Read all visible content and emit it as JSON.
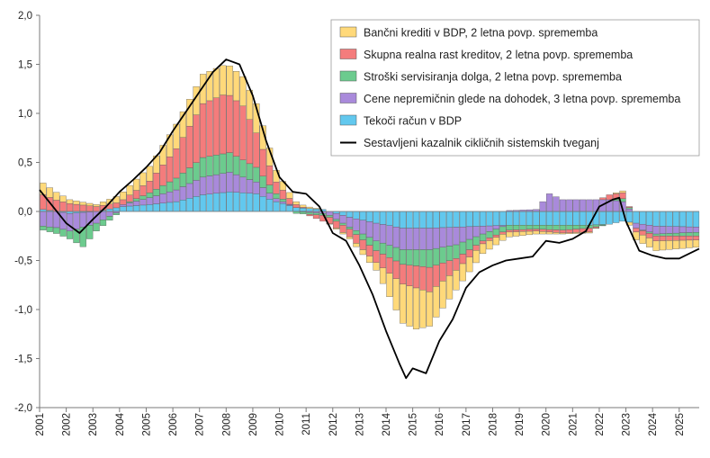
{
  "chart_data": {
    "type": "bar",
    "stacked": true,
    "title": "",
    "xlabel": "",
    "ylabel": "",
    "ylim": [
      -2.0,
      2.0
    ],
    "yticks": [
      "2,0",
      "1,5",
      "1,0",
      "0,5",
      "0,0",
      "-0,5",
      "-1,0",
      "-1,5",
      "-2,0"
    ],
    "xtick_labels": [
      "2001",
      "2002",
      "2003",
      "2004",
      "2005",
      "2006",
      "2007",
      "2008",
      "2009",
      "2010",
      "2011",
      "2012",
      "2013",
      "2014",
      "2015",
      "2016",
      "2017",
      "2018",
      "2019",
      "2020",
      "2021",
      "2022",
      "2023",
      "2024",
      "2025"
    ],
    "x_start": 2001.0,
    "x_end": 2025.75,
    "frequency": "quarterly",
    "grid": false,
    "legend_position": "top-right",
    "legend": [
      {
        "label": "Bančni krediti v BDP, 2 letna povp. sprememba",
        "color": "#FFD97A"
      },
      {
        "label": "Skupna realna rast kreditov, 2 letna povp. sprememba",
        "color": "#F47C7C"
      },
      {
        "label": "Stroški servisiranja dolga, 2 letna povp. sprememba",
        "color": "#6CCB8E"
      },
      {
        "label": "Cene nepremičnin glede na dohodek, 3 letna povp. sprememba",
        "color": "#A98ADB"
      },
      {
        "label": "Tekoči račun v BDP",
        "color": "#62C8EE"
      },
      {
        "label": "Sestavljeni kazalnik cikličnih sistemskih tveganj",
        "color": "#000000"
      }
    ],
    "series": [
      {
        "name": "Tekoči račun v BDP",
        "color": "#62C8EE",
        "anchors": [
          [
            2001.0,
            0.02
          ],
          [
            2002.0,
            -0.02
          ],
          [
            2003.0,
            0.0
          ],
          [
            2004.0,
            0.05
          ],
          [
            2005.0,
            0.07
          ],
          [
            2006.0,
            0.1
          ],
          [
            2007.0,
            0.17
          ],
          [
            2008.0,
            0.2
          ],
          [
            2009.0,
            0.18
          ],
          [
            2009.75,
            0.1
          ],
          [
            2010.5,
            0.04
          ],
          [
            2011.5,
            0.02
          ],
          [
            2012.5,
            -0.06
          ],
          [
            2013.5,
            -0.12
          ],
          [
            2014.5,
            -0.17
          ],
          [
            2015.5,
            -0.17
          ],
          [
            2016.5,
            -0.16
          ],
          [
            2017.5,
            -0.15
          ],
          [
            2018.5,
            -0.14
          ],
          [
            2019.5,
            -0.14
          ],
          [
            2020.5,
            -0.14
          ],
          [
            2021.5,
            -0.14
          ],
          [
            2022.25,
            -0.13
          ],
          [
            2022.75,
            -0.1
          ],
          [
            2023.25,
            -0.12
          ],
          [
            2024.0,
            -0.15
          ],
          [
            2025.75,
            -0.16
          ]
        ]
      },
      {
        "name": "Cene nepremičnin glede na dohodek, 3 letna povp. sprememba",
        "color": "#A98ADB",
        "anchors": [
          [
            2001.0,
            -0.15
          ],
          [
            2002.0,
            -0.18
          ],
          [
            2003.0,
            -0.12
          ],
          [
            2004.0,
            0.02
          ],
          [
            2005.0,
            0.07
          ],
          [
            2006.0,
            0.12
          ],
          [
            2007.0,
            0.18
          ],
          [
            2008.0,
            0.2
          ],
          [
            2009.0,
            0.12
          ],
          [
            2009.75,
            0.03
          ],
          [
            2010.5,
            0.0
          ],
          [
            2011.5,
            -0.02
          ],
          [
            2012.5,
            -0.1
          ],
          [
            2013.5,
            -0.18
          ],
          [
            2014.5,
            -0.22
          ],
          [
            2015.5,
            -0.22
          ],
          [
            2016.5,
            -0.18
          ],
          [
            2017.5,
            -0.08
          ],
          [
            2018.5,
            0.01
          ],
          [
            2019.5,
            0.02
          ],
          [
            2020.0,
            0.18
          ],
          [
            2020.5,
            0.12
          ],
          [
            2021.5,
            0.12
          ],
          [
            2022.25,
            0.12
          ],
          [
            2022.75,
            0.1
          ],
          [
            2023.25,
            -0.05
          ],
          [
            2024.0,
            -0.08
          ],
          [
            2025.75,
            -0.05
          ]
        ]
      },
      {
        "name": "Stroški servisiranja dolga, 2 letna povp. sprememba",
        "color": "#6CCB8E",
        "anchors": [
          [
            2001.0,
            -0.04
          ],
          [
            2002.0,
            -0.08
          ],
          [
            2002.5,
            -0.2
          ],
          [
            2003.0,
            -0.08
          ],
          [
            2004.0,
            0.0
          ],
          [
            2005.0,
            0.05
          ],
          [
            2006.0,
            0.12
          ],
          [
            2007.0,
            0.2
          ],
          [
            2008.0,
            0.2
          ],
          [
            2009.0,
            0.15
          ],
          [
            2009.75,
            0.05
          ],
          [
            2010.5,
            -0.02
          ],
          [
            2011.5,
            -0.02
          ],
          [
            2012.5,
            -0.02
          ],
          [
            2013.5,
            -0.1
          ],
          [
            2014.5,
            -0.15
          ],
          [
            2015.5,
            -0.18
          ],
          [
            2016.5,
            -0.14
          ],
          [
            2017.5,
            -0.07
          ],
          [
            2018.5,
            -0.05
          ],
          [
            2019.5,
            -0.04
          ],
          [
            2020.5,
            -0.05
          ],
          [
            2021.5,
            -0.03
          ],
          [
            2022.25,
            0.0
          ],
          [
            2022.75,
            0.03
          ],
          [
            2023.25,
            0.0
          ],
          [
            2024.0,
            -0.02
          ],
          [
            2025.75,
            -0.04
          ]
        ]
      },
      {
        "name": "Skupna realna rast kreditov, 2 letna povp. sprememba",
        "color": "#F47C7C",
        "anchors": [
          [
            2001.0,
            0.15
          ],
          [
            2002.0,
            0.08
          ],
          [
            2003.0,
            0.05
          ],
          [
            2004.0,
            0.05
          ],
          [
            2005.0,
            0.12
          ],
          [
            2006.0,
            0.3
          ],
          [
            2007.0,
            0.55
          ],
          [
            2007.75,
            0.6
          ],
          [
            2008.5,
            0.55
          ],
          [
            2009.0,
            0.35
          ],
          [
            2009.75,
            0.12
          ],
          [
            2010.5,
            0.03
          ],
          [
            2011.5,
            -0.06
          ],
          [
            2012.5,
            -0.08
          ],
          [
            2013.5,
            -0.12
          ],
          [
            2014.5,
            -0.2
          ],
          [
            2015.5,
            -0.25
          ],
          [
            2016.5,
            -0.12
          ],
          [
            2017.5,
            -0.03
          ],
          [
            2018.5,
            -0.02
          ],
          [
            2019.5,
            -0.02
          ],
          [
            2020.5,
            -0.03
          ],
          [
            2021.5,
            -0.04
          ],
          [
            2022.25,
            0.05
          ],
          [
            2022.75,
            0.06
          ],
          [
            2023.25,
            -0.04
          ],
          [
            2024.0,
            -0.05
          ],
          [
            2025.75,
            -0.04
          ]
        ]
      },
      {
        "name": "Bančni krediti v BDP, 2 letna povp. sprememba",
        "color": "#FFD97A",
        "anchors": [
          [
            2001.0,
            0.12
          ],
          [
            2002.0,
            0.04
          ],
          [
            2003.0,
            0.02
          ],
          [
            2004.0,
            0.08
          ],
          [
            2005.0,
            0.15
          ],
          [
            2006.0,
            0.25
          ],
          [
            2007.0,
            0.3
          ],
          [
            2007.75,
            0.3
          ],
          [
            2008.5,
            0.3
          ],
          [
            2009.0,
            0.3
          ],
          [
            2009.75,
            0.12
          ],
          [
            2010.5,
            0.03
          ],
          [
            2011.5,
            0.0
          ],
          [
            2012.5,
            -0.02
          ],
          [
            2013.5,
            -0.08
          ],
          [
            2014.5,
            -0.4
          ],
          [
            2015.0,
            -0.42
          ],
          [
            2015.5,
            -0.35
          ],
          [
            2016.5,
            -0.2
          ],
          [
            2017.5,
            -0.1
          ],
          [
            2018.5,
            -0.05
          ],
          [
            2019.5,
            -0.03
          ],
          [
            2020.5,
            -0.01
          ],
          [
            2021.5,
            -0.01
          ],
          [
            2022.25,
            0.0
          ],
          [
            2022.75,
            0.02
          ],
          [
            2023.25,
            -0.08
          ],
          [
            2024.0,
            -0.1
          ],
          [
            2025.75,
            -0.07
          ]
        ]
      }
    ],
    "composite_line": {
      "name": "Sestavljeni kazalnik cikličnih sistemskih tveganj",
      "color": "#000000",
      "points": [
        [
          2001.0,
          0.22
        ],
        [
          2001.5,
          0.05
        ],
        [
          2002.0,
          -0.12
        ],
        [
          2002.5,
          -0.22
        ],
        [
          2003.0,
          -0.08
        ],
        [
          2003.5,
          0.05
        ],
        [
          2004.0,
          0.2
        ],
        [
          2004.5,
          0.32
        ],
        [
          2005.0,
          0.45
        ],
        [
          2005.5,
          0.6
        ],
        [
          2006.0,
          0.82
        ],
        [
          2006.5,
          1.02
        ],
        [
          2007.0,
          1.22
        ],
        [
          2007.5,
          1.42
        ],
        [
          2008.0,
          1.55
        ],
        [
          2008.5,
          1.5
        ],
        [
          2009.0,
          1.18
        ],
        [
          2009.5,
          0.72
        ],
        [
          2010.0,
          0.35
        ],
        [
          2010.5,
          0.2
        ],
        [
          2011.0,
          0.18
        ],
        [
          2011.5,
          0.05
        ],
        [
          2012.0,
          -0.22
        ],
        [
          2012.5,
          -0.3
        ],
        [
          2013.0,
          -0.55
        ],
        [
          2013.5,
          -0.85
        ],
        [
          2014.0,
          -1.22
        ],
        [
          2014.5,
          -1.55
        ],
        [
          2014.75,
          -1.7
        ],
        [
          2015.0,
          -1.6
        ],
        [
          2015.5,
          -1.65
        ],
        [
          2016.0,
          -1.32
        ],
        [
          2016.5,
          -1.1
        ],
        [
          2017.0,
          -0.78
        ],
        [
          2017.5,
          -0.62
        ],
        [
          2018.0,
          -0.55
        ],
        [
          2018.5,
          -0.5
        ],
        [
          2019.0,
          -0.48
        ],
        [
          2019.5,
          -0.46
        ],
        [
          2020.0,
          -0.3
        ],
        [
          2020.5,
          -0.32
        ],
        [
          2021.0,
          -0.28
        ],
        [
          2021.5,
          -0.2
        ],
        [
          2022.0,
          0.05
        ],
        [
          2022.5,
          0.12
        ],
        [
          2022.75,
          0.14
        ],
        [
          2023.0,
          -0.1
        ],
        [
          2023.5,
          -0.4
        ],
        [
          2024.0,
          -0.45
        ],
        [
          2024.5,
          -0.48
        ],
        [
          2025.0,
          -0.48
        ],
        [
          2025.75,
          -0.38
        ]
      ]
    }
  }
}
